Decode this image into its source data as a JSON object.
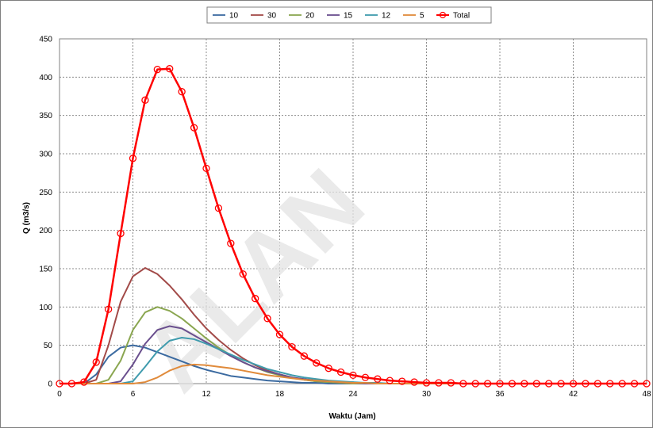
{
  "chart_data": {
    "type": "line",
    "xlabel": "Waktu (Jam)",
    "ylabel": "Q (m3/s)",
    "xlim": [
      0,
      48
    ],
    "ylim": [
      0,
      450
    ],
    "xticks": [
      0,
      6,
      12,
      18,
      24,
      30,
      36,
      42,
      48
    ],
    "yticks": [
      0,
      50,
      100,
      150,
      200,
      250,
      300,
      350,
      400,
      450
    ],
    "grid": true,
    "legend_position": "top-center",
    "x": [
      0,
      1,
      2,
      3,
      4,
      5,
      6,
      7,
      8,
      9,
      10,
      11,
      12,
      13,
      14,
      15,
      16,
      17,
      18,
      19,
      20,
      21,
      22,
      23,
      24,
      25,
      26,
      27,
      28,
      29,
      30,
      31,
      32,
      33,
      34,
      35,
      36,
      37,
      38,
      39,
      40,
      41,
      42,
      43,
      44,
      45,
      46,
      47,
      48
    ],
    "series": [
      {
        "name": "10",
        "color": "#3b6aa0",
        "markers": false,
        "values": [
          0,
          0,
          0,
          12,
          35,
          47,
          50,
          47,
          41,
          35,
          29,
          23,
          18,
          14,
          10,
          8,
          6,
          4,
          3,
          2,
          1,
          1,
          0,
          0,
          0,
          0,
          0,
          0,
          0,
          0,
          0,
          0,
          0,
          0,
          0,
          0,
          0,
          0,
          0,
          0,
          0,
          0,
          0,
          0,
          0,
          0,
          0,
          0,
          0
        ]
      },
      {
        "name": "30",
        "color": "#a24a48",
        "markers": false,
        "values": [
          0,
          0,
          0,
          5,
          50,
          107,
          140,
          151,
          143,
          128,
          110,
          90,
          72,
          57,
          44,
          33,
          24,
          17,
          12,
          8,
          5,
          3,
          2,
          1,
          0,
          0,
          0,
          0,
          0,
          0,
          0,
          0,
          0,
          0,
          0,
          0,
          0,
          0,
          0,
          0,
          0,
          0,
          0,
          0,
          0,
          0,
          0,
          0,
          0
        ]
      },
      {
        "name": "20",
        "color": "#8aa650",
        "markers": false,
        "values": [
          0,
          0,
          0,
          0,
          5,
          30,
          70,
          93,
          100,
          95,
          85,
          72,
          59,
          47,
          37,
          28,
          21,
          15,
          11,
          8,
          5,
          3,
          2,
          1,
          0,
          0,
          0,
          0,
          0,
          0,
          0,
          0,
          0,
          0,
          0,
          0,
          0,
          0,
          0,
          0,
          0,
          0,
          0,
          0,
          0,
          0,
          0,
          0,
          0
        ]
      },
      {
        "name": "15",
        "color": "#6a4f8e",
        "markers": false,
        "values": [
          0,
          0,
          0,
          0,
          0,
          3,
          25,
          52,
          70,
          75,
          72,
          63,
          54,
          45,
          36,
          28,
          21,
          16,
          12,
          8,
          6,
          4,
          3,
          2,
          1,
          0,
          0,
          0,
          0,
          0,
          0,
          0,
          0,
          0,
          0,
          0,
          0,
          0,
          0,
          0,
          0,
          0,
          0,
          0,
          0,
          0,
          0,
          0,
          0
        ]
      },
      {
        "name": "12",
        "color": "#3f9bad",
        "markers": false,
        "values": [
          0,
          0,
          0,
          0,
          0,
          0,
          3,
          22,
          42,
          56,
          60,
          58,
          52,
          45,
          38,
          31,
          25,
          19,
          15,
          11,
          8,
          6,
          4,
          3,
          2,
          1,
          1,
          0,
          0,
          0,
          0,
          0,
          0,
          0,
          0,
          0,
          0,
          0,
          0,
          0,
          0,
          0,
          0,
          0,
          0,
          0,
          0,
          0,
          0
        ]
      },
      {
        "name": "5",
        "color": "#e08a3a",
        "markers": false,
        "values": [
          0,
          0,
          0,
          0,
          0,
          0,
          0,
          2,
          8,
          17,
          23,
          25,
          24,
          22,
          20,
          17,
          14,
          11,
          9,
          7,
          5,
          4,
          3,
          2,
          1,
          1,
          0,
          0,
          0,
          0,
          0,
          0,
          0,
          0,
          0,
          0,
          0,
          0,
          0,
          0,
          0,
          0,
          0,
          0,
          0,
          0,
          0,
          0,
          0
        ]
      },
      {
        "name": "Total",
        "color": "#ff0000",
        "markers": true,
        "values": [
          0,
          0,
          2,
          28,
          97,
          196,
          294,
          370,
          410,
          411,
          381,
          334,
          281,
          229,
          183,
          143,
          111,
          85,
          64,
          48,
          36,
          27,
          20,
          15,
          11,
          8,
          6,
          4,
          3,
          2,
          1,
          1,
          1,
          0,
          0,
          0,
          0,
          0,
          0,
          0,
          0,
          0,
          0,
          0,
          0,
          0,
          0,
          0,
          0
        ]
      }
    ]
  },
  "watermark": "ALAN"
}
